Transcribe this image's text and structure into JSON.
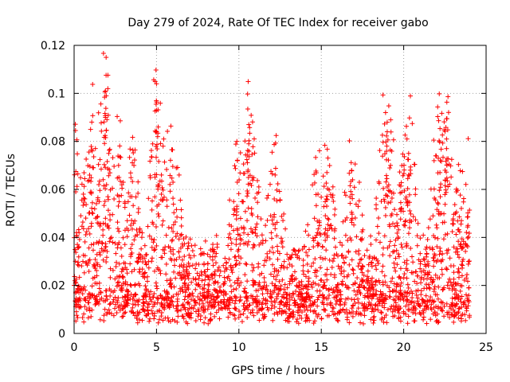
{
  "chart_data": {
    "type": "scatter",
    "title": "Day 279 of 2024, Rate Of TEC Index for receiver gabo",
    "xlabel": "GPS time / hours",
    "ylabel": "ROTI / TECUs",
    "xlim": [
      0,
      25
    ],
    "ylim": [
      0,
      0.12
    ],
    "xticks": [
      0,
      5,
      10,
      15,
      20,
      25
    ],
    "xtick_labels": [
      "0",
      "5",
      "10",
      "15",
      "20",
      "25"
    ],
    "yticks": [
      0,
      0.02,
      0.04,
      0.06,
      0.08,
      0.1,
      0.12
    ],
    "ytick_labels": [
      "0",
      "0.02",
      "0.04",
      "0.06",
      "0.08",
      "0.1",
      "0.12"
    ],
    "grid": true,
    "marker": "+",
    "color": "#ff0000",
    "x_range": [
      0,
      24
    ],
    "series": [
      {
        "name": "ROTI",
        "description_values": "dense scatter, bulk between 0.005 and 0.03 TECU/s",
        "peaks": [
          {
            "x": 0.1,
            "y": 0.059
          },
          {
            "x": 0.3,
            "y": 0.042
          },
          {
            "x": 1.0,
            "y": 0.085
          },
          {
            "x": 1.1,
            "y": 0.076
          },
          {
            "x": 1.5,
            "y": 0.062
          },
          {
            "x": 1.9,
            "y": 0.101
          },
          {
            "x": 1.95,
            "y": 0.099
          },
          {
            "x": 1.9,
            "y": 0.09
          },
          {
            "x": 2.1,
            "y": 0.075
          },
          {
            "x": 2.7,
            "y": 0.07
          },
          {
            "x": 3.5,
            "y": 0.057
          },
          {
            "x": 5.0,
            "y": 0.104
          },
          {
            "x": 5.0,
            "y": 0.093
          },
          {
            "x": 5.1,
            "y": 0.086
          },
          {
            "x": 5.4,
            "y": 0.078
          },
          {
            "x": 5.3,
            "y": 0.066
          },
          {
            "x": 6.0,
            "y": 0.063
          },
          {
            "x": 9.9,
            "y": 0.063
          },
          {
            "x": 10.6,
            "y": 0.087
          },
          {
            "x": 10.6,
            "y": 0.079
          },
          {
            "x": 10.8,
            "y": 0.065
          },
          {
            "x": 12.2,
            "y": 0.066
          },
          {
            "x": 14.8,
            "y": 0.058
          },
          {
            "x": 15.3,
            "y": 0.056
          },
          {
            "x": 16.9,
            "y": 0.064
          },
          {
            "x": 18.9,
            "y": 0.092
          },
          {
            "x": 19.0,
            "y": 0.088
          },
          {
            "x": 19.0,
            "y": 0.084
          },
          {
            "x": 19.2,
            "y": 0.07
          },
          {
            "x": 20.2,
            "y": 0.081
          },
          {
            "x": 20.3,
            "y": 0.075
          },
          {
            "x": 20.4,
            "y": 0.068
          },
          {
            "x": 22.1,
            "y": 0.073
          },
          {
            "x": 22.2,
            "y": 0.067
          },
          {
            "x": 22.6,
            "y": 0.081
          },
          {
            "x": 22.6,
            "y": 0.077
          },
          {
            "x": 23.5,
            "y": 0.047
          },
          {
            "x": 23.9,
            "y": 0.045
          }
        ]
      }
    ]
  }
}
